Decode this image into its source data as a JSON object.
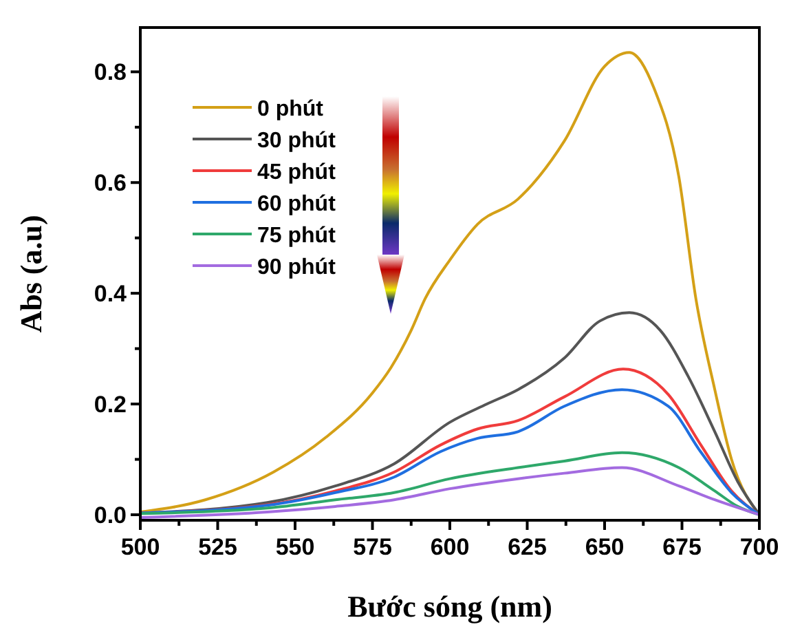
{
  "chart_data": {
    "type": "line",
    "xlabel": "Bước sóng (nm)",
    "ylabel": "Abs (a.u)",
    "xlim": [
      500,
      700
    ],
    "ylim": [
      -0.01,
      0.88
    ],
    "xticks": [
      500,
      {
        "value": 512.5,
        "label": null
      },
      525,
      {
        "value": 537.5,
        "label": null
      },
      550,
      {
        "value": 562.5,
        "label": null
      },
      575,
      {
        "value": 587.5,
        "label": null
      },
      600,
      {
        "value": 612.5,
        "label": null
      },
      625,
      {
        "value": 637.5,
        "label": null
      },
      650,
      {
        "value": 662.5,
        "label": null
      },
      675,
      {
        "value": 687.5,
        "label": null
      },
      700
    ],
    "yticks": [
      {
        "value": 0,
        "label": "0.0"
      },
      {
        "value": 0.1,
        "label": null
      },
      0.2,
      {
        "value": 0.3,
        "label": null
      },
      0.4,
      {
        "value": 0.5,
        "label": null
      },
      0.6,
      {
        "value": 0.7,
        "label": null
      },
      0.8
    ],
    "grid": false,
    "legend": "top left",
    "line_style": "solid",
    "marker": "none",
    "series": [
      {
        "name": "0 phút",
        "color": "#d4a017",
        "x": [
          500,
          521,
          543,
          560,
          575,
          581,
          587.5,
          592,
          600,
          609,
          622,
          637,
          650,
          658,
          666,
          674,
          679.5,
          685.6,
          691,
          700
        ],
        "values": [
          0.005,
          0.027,
          0.077,
          0.14,
          0.22,
          0.266,
          0.333,
          0.39,
          0.46,
          0.525,
          0.57,
          0.675,
          0.81,
          0.835,
          0.77,
          0.61,
          0.39,
          0.226,
          0.1,
          0
        ]
      },
      {
        "name": "30 phút",
        "color": "#555555",
        "x": [
          500,
          541,
          563,
          582,
          600,
          612,
          622,
          637,
          648.5,
          658,
          668,
          677,
          685.6,
          693,
          700
        ],
        "values": [
          0.003,
          0.022,
          0.052,
          0.092,
          0.167,
          0.2,
          0.226,
          0.283,
          0.35,
          0.365,
          0.333,
          0.25,
          0.15,
          0.06,
          0
        ]
      },
      {
        "name": "45 phút",
        "color": "#f03c3c",
        "x": [
          500,
          541,
          563,
          582,
          597,
          609,
          622,
          637,
          656,
          670.6,
          681,
          691,
          700
        ],
        "values": [
          0.003,
          0.018,
          0.043,
          0.077,
          0.126,
          0.155,
          0.17,
          0.213,
          0.263,
          0.217,
          0.127,
          0.043,
          0
        ]
      },
      {
        "name": "60 phút",
        "color": "#1f6fe0",
        "x": [
          500,
          541,
          563,
          582,
          597,
          609,
          622,
          637,
          655.6,
          670.6,
          681,
          691,
          700
        ],
        "values": [
          0.003,
          0.017,
          0.04,
          0.068,
          0.114,
          0.138,
          0.15,
          0.196,
          0.226,
          0.196,
          0.114,
          0.04,
          0
        ]
      },
      {
        "name": "75 phút",
        "color": "#2ea86a",
        "x": [
          500,
          541,
          563,
          582,
          600,
          622,
          637,
          655.6,
          674,
          685.6,
          693,
          700
        ],
        "values": [
          0.002,
          0.012,
          0.027,
          0.04,
          0.065,
          0.085,
          0.097,
          0.112,
          0.085,
          0.043,
          0.015,
          0
        ]
      },
      {
        "name": "90 phút",
        "color": "#a36be0",
        "x": [
          500,
          541,
          563,
          582,
          600,
          622,
          637,
          655.6,
          674,
          685.6,
          700
        ],
        "values": [
          -0.005,
          0.005,
          0.015,
          0.027,
          0.047,
          0.065,
          0.075,
          0.085,
          0.052,
          0.027,
          0
        ]
      }
    ]
  }
}
